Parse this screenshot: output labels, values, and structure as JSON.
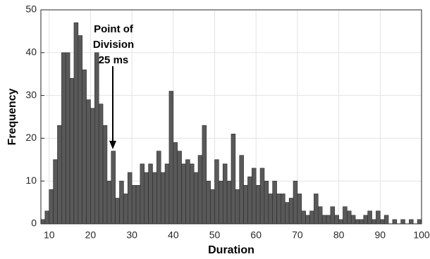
{
  "chart_data": {
    "type": "histogram",
    "xlabel": "Duration",
    "ylabel": "Frequency",
    "annotation": [
      "Point of",
      "Division",
      "25 ms"
    ],
    "bins": [
      8,
      9,
      10,
      11,
      12,
      13,
      14,
      15,
      16,
      17,
      18,
      19,
      20,
      21,
      22,
      23,
      24,
      25,
      26,
      27,
      28,
      29,
      30,
      31,
      32,
      33,
      34,
      35,
      36,
      37,
      38,
      39,
      40,
      41,
      42,
      43,
      44,
      45,
      46,
      47,
      48,
      49,
      50,
      51,
      52,
      53,
      54,
      55,
      56,
      57,
      58,
      59,
      60,
      61,
      62,
      63,
      64,
      65,
      66,
      67,
      68,
      69,
      70,
      71,
      72,
      73,
      74,
      75,
      76,
      77,
      78,
      79,
      80,
      81,
      82,
      83,
      84,
      85,
      86,
      87,
      88,
      89,
      90,
      91,
      92,
      93,
      94,
      95,
      96,
      97,
      98,
      99,
      100
    ],
    "values": [
      1,
      3,
      8,
      15,
      23,
      40,
      40,
      34,
      47,
      44,
      36,
      29,
      27,
      40,
      28,
      23,
      10,
      17,
      6,
      10,
      7,
      12,
      9,
      9,
      14,
      12,
      14,
      12,
      17,
      12,
      14,
      31,
      19,
      17,
      14,
      15,
      14,
      12,
      16,
      23,
      10,
      8,
      15,
      10,
      14,
      10,
      21,
      8,
      16,
      9,
      11,
      13,
      9,
      13,
      10,
      7,
      10,
      7,
      7,
      5,
      6,
      10,
      7,
      3,
      2,
      3,
      7,
      4,
      2,
      2,
      4,
      2,
      1,
      4,
      3,
      2,
      1,
      1,
      2,
      3,
      1,
      3,
      1,
      2,
      0,
      1,
      0,
      1,
      0,
      1,
      0,
      1
    ],
    "color": "#595959",
    "xlim": [
      8,
      100
    ],
    "ylim": [
      0,
      50
    ],
    "xticks": [
      10,
      20,
      30,
      40,
      50,
      60,
      70,
      80,
      90,
      100
    ],
    "yticks": [
      0,
      10,
      20,
      30,
      40,
      50
    ],
    "grid": true
  }
}
